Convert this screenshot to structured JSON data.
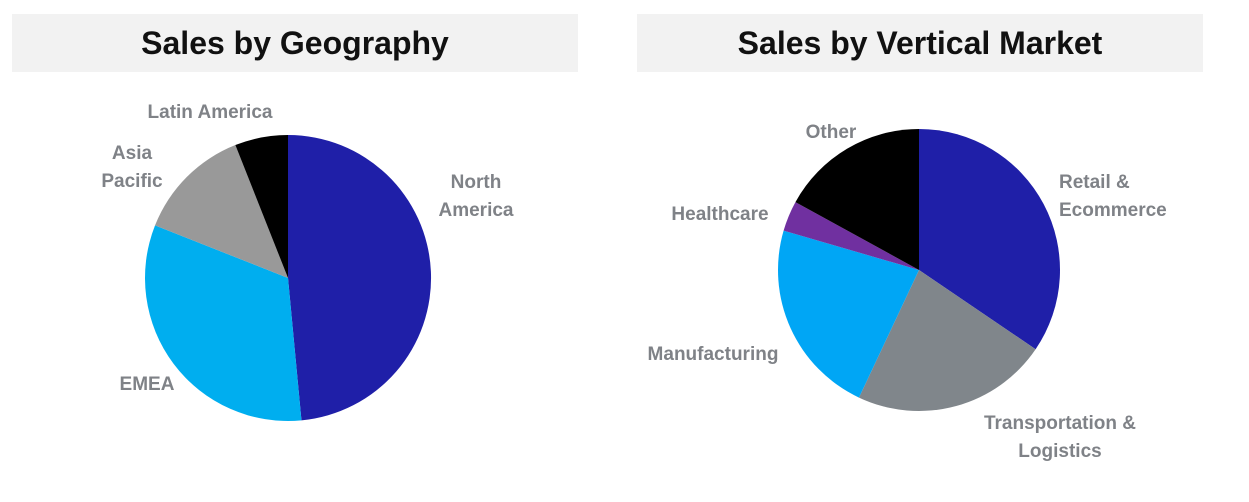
{
  "chart_data": [
    {
      "type": "pie",
      "title": "Sales by Geography",
      "slices": [
        {
          "label": "North America",
          "label_lines": [
            "North",
            "America"
          ],
          "value": 48.5,
          "color": "#1f1fa8"
        },
        {
          "label": "EMEA",
          "label_lines": [
            "EMEA"
          ],
          "value": 32.5,
          "color": "#00aeef"
        },
        {
          "label": "Asia Pacific",
          "label_lines": [
            "Asia",
            "Pacific"
          ],
          "value": 13.0,
          "color": "#999999"
        },
        {
          "label": "Latin America",
          "label_lines": [
            "Latin America"
          ],
          "value": 6.0,
          "color": "#000000"
        }
      ]
    },
    {
      "type": "pie",
      "title": "Sales by Vertical Market",
      "slices": [
        {
          "label": "Retail & Ecommerce",
          "label_lines": [
            "Retail &",
            "Ecommerce"
          ],
          "value": 34.5,
          "color": "#1f1fa8"
        },
        {
          "label": "Transportation & Logistics",
          "label_lines": [
            "Transportation &",
            "Logistics"
          ],
          "value": 22.5,
          "color": "#80868b"
        },
        {
          "label": "Manufacturing",
          "label_lines": [
            "Manufacturing"
          ],
          "value": 22.5,
          "color": "#00a6f5"
        },
        {
          "label": "Healthcare",
          "label_lines": [
            "Healthcare"
          ],
          "value": 3.5,
          "color": "#7030a0"
        },
        {
          "label": "Other",
          "label_lines": [
            "Other"
          ],
          "value": 17.0,
          "color": "#000000"
        }
      ]
    }
  ]
}
